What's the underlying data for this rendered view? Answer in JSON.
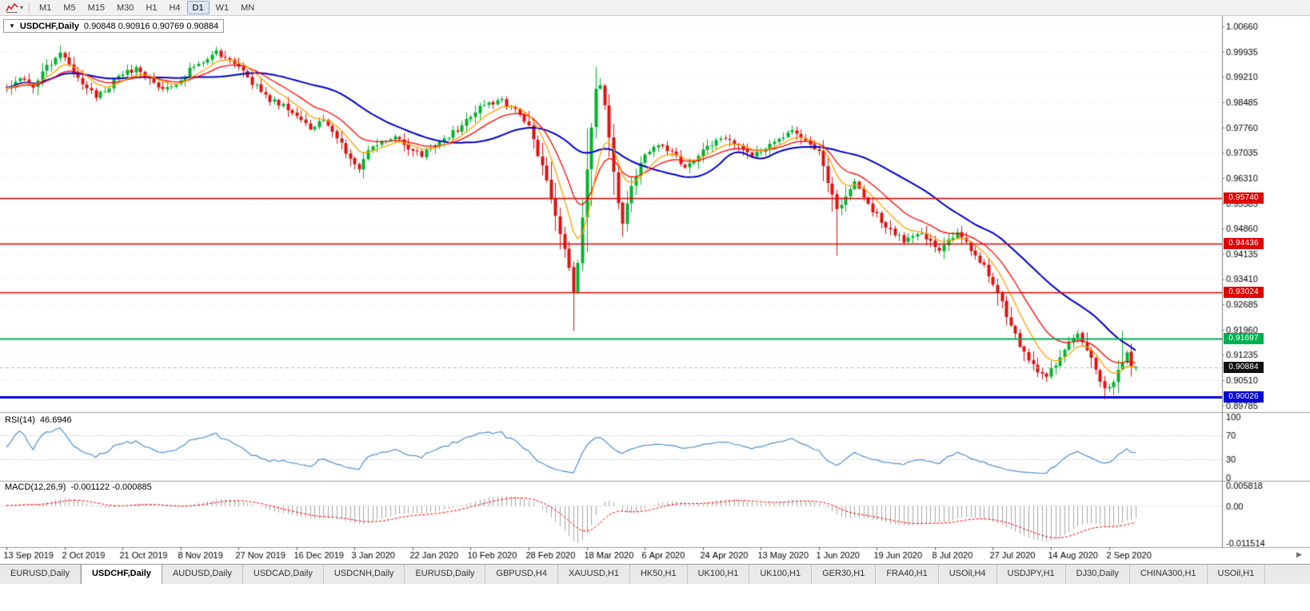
{
  "icons": {
    "toolbar_caret": "▾",
    "title_triangle": "▼",
    "scroll_end": "▶"
  },
  "toolbar": {
    "timeframes": [
      "M1",
      "M5",
      "M15",
      "M30",
      "H1",
      "H4",
      "D1",
      "W1",
      "MN"
    ],
    "active_timeframe": "D1"
  },
  "chart": {
    "title": "USDCHF,Daily",
    "ohlc_text": "0.90848 0.90916 0.90769 0.90884"
  },
  "rsi_panel": {
    "label": "RSI(14)",
    "value": "46.6946",
    "axis_labels": [
      "100",
      "70",
      "30",
      "0"
    ],
    "axis_values": [
      100,
      70,
      30,
      0
    ],
    "guides": [
      70,
      30
    ]
  },
  "macd_panel": {
    "label": "MACD(12,26,9)",
    "values": "-0.001122 -0.000885",
    "axis_labels": [
      "0.005818",
      "0.00",
      "-0.011514"
    ],
    "scale_max": 0.005818,
    "scale_min": -0.011514
  },
  "tabs": {
    "active_index": 1,
    "items": [
      "EURUSD,Daily",
      "USDCHF,Daily",
      "AUDUSD,Daily",
      "USDCAD,Daily",
      "USDCNH,Daily",
      "EURUSD,Daily",
      "GBPUSD,H4",
      "XAUUSD,H1",
      "HK50,H1",
      "UK100,H1",
      "UK100,H1",
      "GER30,H1",
      "FRA40,H1",
      "USOil,H4",
      "USDJPY,H1",
      "DJ30,Daily",
      "CHINA300,H1",
      "USOil,H1"
    ]
  },
  "chart_data": {
    "type": "candlestick",
    "symbol": "USDCHF",
    "period": "Daily",
    "current_ohlc": {
      "open": 0.90848,
      "high": 0.90916,
      "low": 0.90769,
      "close": 0.90884
    },
    "price_scale": {
      "max": 1.0087,
      "min": 0.8973,
      "tick_top": 1.0066,
      "tick_step": 0.00725,
      "tick_count": 16
    },
    "x_labels": [
      "13 Sep 2019",
      "2 Oct 2019",
      "21 Oct 2019",
      "8 Nov 2019",
      "27 Nov 2019",
      "16 Dec 2019",
      "3 Jan 2020",
      "22 Jan 2020",
      "10 Feb 2020",
      "28 Feb 2020",
      "18 Mar 2020",
      "6 Apr 2020",
      "24 Apr 2020",
      "13 May 2020",
      "1 Jun 2020",
      "19 Jun 2020",
      "8 Jul 2020",
      "27 Jul 2020",
      "14 Aug 2020",
      "2 Sep 2020"
    ],
    "candles_per_label": 13,
    "num_candles": 254,
    "price_path": [
      [
        0,
        0.989
      ],
      [
        3,
        0.9915
      ],
      [
        6,
        0.9896
      ],
      [
        9,
        0.9948
      ],
      [
        12,
        0.9988
      ],
      [
        14,
        0.9952
      ],
      [
        17,
        0.9906
      ],
      [
        20,
        0.9866
      ],
      [
        23,
        0.9896
      ],
      [
        26,
        0.993
      ],
      [
        29,
        0.9946
      ],
      [
        32,
        0.9916
      ],
      [
        35,
        0.9886
      ],
      [
        38,
        0.9906
      ],
      [
        41,
        0.994
      ],
      [
        44,
        0.9962
      ],
      [
        47,
        0.9992
      ],
      [
        50,
        0.9972
      ],
      [
        53,
        0.9932
      ],
      [
        56,
        0.9892
      ],
      [
        59,
        0.9856
      ],
      [
        62,
        0.9842
      ],
      [
        65,
        0.9812
      ],
      [
        68,
        0.9776
      ],
      [
        71,
        0.9792
      ],
      [
        74,
        0.9742
      ],
      [
        77,
        0.9692
      ],
      [
        79,
        0.9664
      ],
      [
        81,
        0.9706
      ],
      [
        84,
        0.9736
      ],
      [
        87,
        0.9746
      ],
      [
        90,
        0.9716
      ],
      [
        93,
        0.9696
      ],
      [
        96,
        0.9722
      ],
      [
        99,
        0.9752
      ],
      [
        102,
        0.9782
      ],
      [
        105,
        0.9822
      ],
      [
        108,
        0.9846
      ],
      [
        111,
        0.9852
      ],
      [
        114,
        0.9826
      ],
      [
        117,
        0.9782
      ],
      [
        119,
        0.9702
      ],
      [
        121,
        0.9622
      ],
      [
        123,
        0.9522
      ],
      [
        125,
        0.9432
      ],
      [
        126,
        0.9372
      ],
      [
        127,
        0.9306
      ],
      [
        128,
        0.9384
      ],
      [
        129,
        0.9524
      ],
      [
        130,
        0.9652
      ],
      [
        131,
        0.9784
      ],
      [
        132,
        0.9884
      ],
      [
        133,
        0.9902
      ],
      [
        134,
        0.9842
      ],
      [
        135,
        0.9752
      ],
      [
        136,
        0.9652
      ],
      [
        137,
        0.9562
      ],
      [
        138,
        0.9506
      ],
      [
        139,
        0.9562
      ],
      [
        141,
        0.9642
      ],
      [
        143,
        0.9692
      ],
      [
        146,
        0.9732
      ],
      [
        149,
        0.9702
      ],
      [
        152,
        0.9662
      ],
      [
        155,
        0.9692
      ],
      [
        158,
        0.9732
      ],
      [
        161,
        0.9752
      ],
      [
        164,
        0.9722
      ],
      [
        167,
        0.9692
      ],
      [
        170,
        0.9716
      ],
      [
        173,
        0.9746
      ],
      [
        176,
        0.9762
      ],
      [
        179,
        0.9732
      ],
      [
        182,
        0.9702
      ],
      [
        184,
        0.9622
      ],
      [
        186,
        0.9536
      ],
      [
        188,
        0.9576
      ],
      [
        190,
        0.9616
      ],
      [
        192,
        0.9576
      ],
      [
        195,
        0.9522
      ],
      [
        198,
        0.9482
      ],
      [
        201,
        0.9452
      ],
      [
        204,
        0.9476
      ],
      [
        207,
        0.9446
      ],
      [
        209,
        0.9426
      ],
      [
        211,
        0.9456
      ],
      [
        213,
        0.9472
      ],
      [
        215,
        0.9442
      ],
      [
        217,
        0.9406
      ],
      [
        219,
        0.9382
      ],
      [
        221,
        0.9332
      ],
      [
        223,
        0.9272
      ],
      [
        225,
        0.9206
      ],
      [
        227,
        0.9152
      ],
      [
        229,
        0.9112
      ],
      [
        231,
        0.9076
      ],
      [
        233,
        0.9062
      ],
      [
        235,
        0.9096
      ],
      [
        237,
        0.9136
      ],
      [
        239,
        0.9172
      ],
      [
        240,
        0.9182
      ],
      [
        242,
        0.9132
      ],
      [
        244,
        0.9086
      ],
      [
        246,
        0.9022
      ],
      [
        248,
        0.9046
      ],
      [
        249,
        0.9076
      ],
      [
        250,
        0.9108
      ],
      [
        251,
        0.9132
      ],
      [
        252,
        0.9092
      ],
      [
        253,
        0.90884
      ]
    ],
    "forced_wicks": [
      {
        "i": 12,
        "high": 1.0013
      },
      {
        "i": 47,
        "high": 1.0008
      },
      {
        "i": 127,
        "low": 0.9192
      },
      {
        "i": 133,
        "high": 0.9918
      },
      {
        "i": 138,
        "low": 0.9462
      },
      {
        "i": 186,
        "low": 0.9408
      },
      {
        "i": 246,
        "low": 0.8996
      },
      {
        "i": 250,
        "high": 0.9192
      }
    ],
    "price_markers": [
      {
        "price": 0.9574,
        "color": "#e00000",
        "type": "hline",
        "lw": 1.5
      },
      {
        "price": 0.94436,
        "color": "#e00000",
        "type": "hline",
        "lw": 1.5
      },
      {
        "price": 0.93024,
        "color": "#e00000",
        "type": "hline",
        "lw": 1.5
      },
      {
        "price": 0.91697,
        "color": "#00b050",
        "type": "hline",
        "lw": 2
      },
      {
        "price": 0.90884,
        "color": "#111111",
        "type": "bid",
        "lw": 1
      },
      {
        "price": 0.90026,
        "color": "#0000d8",
        "type": "hline",
        "lw": 3
      }
    ],
    "indicators": {
      "ma_fast": {
        "type": "ema",
        "period": 8
      },
      "ma_mid": {
        "type": "ema",
        "period": 16
      },
      "ma_slow": {
        "type": "sma",
        "period": 34
      },
      "rsi_period": 14,
      "macd": {
        "fast": 12,
        "slow": 26,
        "signal": 9
      }
    },
    "colors": {
      "up": "#00b22d",
      "down": "#dd1111",
      "ma_fast": "#ffa000",
      "ma_mid": "#ff0000",
      "ma_slow": "#0000cc",
      "rsi": "#4f8fd0",
      "macd_hist": "#a6a6a6",
      "macd_signal": "#ff0000",
      "grid": "#e7e7e7",
      "axis_text": "#000000",
      "bid_line": "#bdbdbd",
      "separator": "#9a9a9a"
    }
  }
}
